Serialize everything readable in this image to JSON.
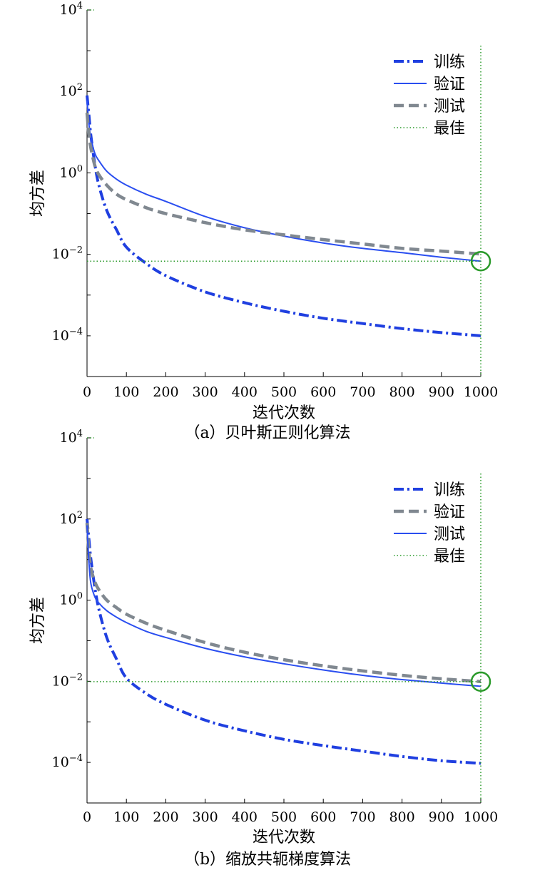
{
  "panels": [
    {
      "caption": "（a）贝叶斯正则化算法",
      "chart_data": {
        "type": "line",
        "xlabel": "迭代次数",
        "ylabel": "均方差",
        "xlim": [
          0,
          1000
        ],
        "ylim": [
          1e-05,
          10000
        ],
        "yscale": "log",
        "x_ticks": [
          "0",
          "100",
          "200",
          "300",
          "400",
          "500",
          "600",
          "700",
          "800",
          "900",
          "1000"
        ],
        "y_ticks": [
          {
            "base": "10",
            "exp": "4",
            "value": 10000
          },
          {
            "base": "10",
            "exp": "2",
            "value": 100
          },
          {
            "base": "10",
            "exp": "0",
            "value": 1
          },
          {
            "base": "10",
            "exp": "−2",
            "value": 0.01
          },
          {
            "base": "10",
            "exp": "−4",
            "value": 0.0001
          }
        ],
        "grid": false,
        "legend_position": "top-right",
        "series": [
          {
            "name": "训练",
            "style": "dash-dot",
            "color": "#1f3fe0",
            "x": [
              0,
              5,
              10,
              20,
              30,
              50,
              75,
              100,
              150,
              200,
              300,
              400,
              500,
              600,
              700,
              800,
              900,
              1000
            ],
            "y": [
              80,
              25,
              8,
              1.6,
              0.5,
              0.12,
              0.04,
              0.015,
              0.006,
              0.003,
              0.0012,
              0.00065,
              0.0004,
              0.00027,
              0.0002,
              0.00015,
              0.00012,
              0.0001
            ]
          },
          {
            "name": "验证",
            "style": "solid",
            "color": "#2a4ef0",
            "x": [
              0,
              5,
              10,
              20,
              30,
              50,
              75,
              100,
              150,
              200,
              300,
              400,
              500,
              600,
              700,
              800,
              900,
              1000
            ],
            "y": [
              60,
              15,
              7,
              3,
              2,
              1.1,
              0.7,
              0.5,
              0.3,
              0.2,
              0.085,
              0.045,
              0.028,
              0.019,
              0.014,
              0.011,
              0.0085,
              0.0068
            ]
          },
          {
            "name": "测试",
            "style": "dashed",
            "color": "#808890",
            "x": [
              0,
              5,
              10,
              20,
              30,
              50,
              75,
              100,
              150,
              200,
              300,
              400,
              500,
              600,
              700,
              800,
              900,
              1000
            ],
            "y": [
              30,
              8,
              4,
              1.5,
              0.9,
              0.5,
              0.3,
              0.22,
              0.14,
              0.1,
              0.06,
              0.04,
              0.03,
              0.023,
              0.018,
              0.014,
              0.012,
              0.0102
            ]
          },
          {
            "name": "最佳",
            "style": "dotted",
            "color": "#2a9a2a",
            "type": "reference",
            "best_x": 1000,
            "best_y": 0.0068
          }
        ]
      }
    },
    {
      "caption": "（b）缩放共轭梯度算法",
      "chart_data": {
        "type": "line",
        "xlabel": "迭代次数",
        "ylabel": "均方差",
        "xlim": [
          0,
          1000
        ],
        "ylim": [
          1e-05,
          10000
        ],
        "yscale": "log",
        "x_ticks": [
          "0",
          "100",
          "200",
          "300",
          "400",
          "500",
          "600",
          "700",
          "800",
          "900",
          "1000"
        ],
        "y_ticks": [
          {
            "base": "10",
            "exp": "4",
            "value": 10000
          },
          {
            "base": "10",
            "exp": "2",
            "value": 100
          },
          {
            "base": "10",
            "exp": "0",
            "value": 1
          },
          {
            "base": "10",
            "exp": "−2",
            "value": 0.01
          },
          {
            "base": "10",
            "exp": "−4",
            "value": 0.0001
          }
        ],
        "grid": false,
        "legend_position": "top-right",
        "series": [
          {
            "name": "训练",
            "style": "dash-dot",
            "color": "#1f3fe0",
            "x": [
              0,
              5,
              10,
              20,
              30,
              50,
              75,
              100,
              150,
              200,
              300,
              400,
              500,
              600,
              700,
              800,
              900,
              1000
            ],
            "y": [
              100,
              30,
              10,
              2,
              0.6,
              0.12,
              0.035,
              0.012,
              0.005,
              0.0027,
              0.0011,
              0.0006,
              0.00037,
              0.00026,
              0.00019,
              0.00014,
              0.00011,
              9.5e-05
            ]
          },
          {
            "name": "验证",
            "style": "dashed",
            "color": "#808890",
            "x": [
              0,
              5,
              10,
              20,
              30,
              50,
              75,
              100,
              150,
              200,
              300,
              400,
              500,
              600,
              700,
              800,
              900,
              1000
            ],
            "y": [
              80,
              15,
              6,
              2.8,
              1.8,
              1,
              0.65,
              0.45,
              0.27,
              0.18,
              0.09,
              0.052,
              0.034,
              0.024,
              0.018,
              0.014,
              0.0115,
              0.0098
            ]
          },
          {
            "name": "测试",
            "style": "solid",
            "color": "#2a4ef0",
            "x": [
              0,
              5,
              10,
              20,
              30,
              50,
              75,
              100,
              150,
              200,
              300,
              400,
              500,
              600,
              700,
              800,
              900,
              1000
            ],
            "y": [
              70,
              8,
              2.5,
              1.2,
              0.85,
              0.55,
              0.38,
              0.28,
              0.17,
              0.12,
              0.065,
              0.04,
              0.027,
              0.019,
              0.014,
              0.011,
              0.009,
              0.0075
            ]
          },
          {
            "name": "最佳",
            "style": "dotted",
            "color": "#2a9a2a",
            "type": "reference",
            "best_x": 1000,
            "best_y": 0.0098
          }
        ]
      }
    }
  ]
}
